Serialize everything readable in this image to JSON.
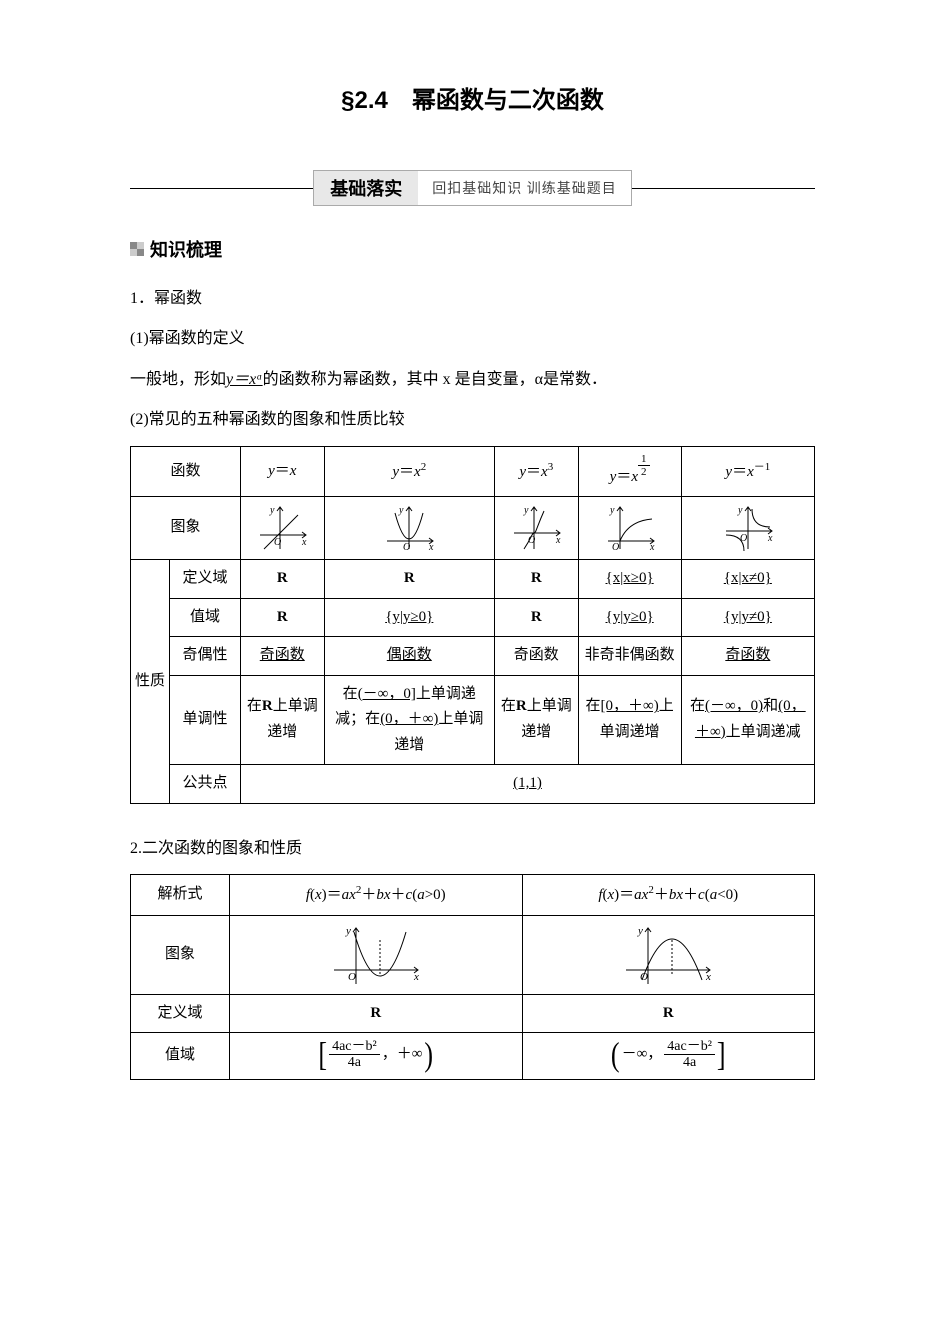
{
  "title": "§2.4　幂函数与二次函数",
  "banner": {
    "label": "基础落实",
    "sub": "回扣基础知识 训练基础题目"
  },
  "section1_head": "知识梳理",
  "p1": "1．幂函数",
  "p2": "(1)幂函数的定义",
  "p3_pre": "一般地，形如",
  "p3_u": "y＝xᵅ",
  "p3_post": "的函数称为幂函数，其中 x 是自变量，α是常数．",
  "p4": "(2)常见的五种幂函数的图象和性质比较",
  "t1": {
    "hdr_fn": "函数",
    "fns": [
      "y＝x",
      "y＝x²",
      "y＝x³",
      "y＝x^{1/2}",
      "y＝x⁻¹"
    ],
    "hdr_graph": "图象",
    "prop_label": "性质",
    "rows": {
      "domain_h": "定义域",
      "domain": [
        "R",
        "R",
        "R",
        "{x|x≥0}",
        "{x|x≠0}"
      ],
      "domain_u": [
        false,
        false,
        false,
        true,
        true
      ],
      "range_h": "值域",
      "range": [
        "R",
        "{y|y≥0}",
        "R",
        "{y|y≥0}",
        "{y|y≠0}"
      ],
      "range_u": [
        false,
        true,
        false,
        true,
        true
      ],
      "parity_h": "奇偶性",
      "parity": [
        "奇函数",
        "偶函数",
        "奇函数",
        "非奇非偶函数",
        "奇函数"
      ],
      "parity_u": [
        true,
        true,
        false,
        false,
        true
      ],
      "mono_h": "单调性",
      "mono": [
        "在R上单调递增",
        "在(－∞，0]上单调递减；在(0，＋∞)上单调递增",
        "在R上单调递增",
        "在[0，＋∞)上单调递增",
        "在(－∞，0)和(0，＋∞)上单调递减"
      ],
      "mono_u_segments": {
        "0": [
          {
            "t": "在",
            "u": false
          },
          {
            "t": "R",
            "u": false,
            "b": true
          },
          {
            "t": "上单调递增",
            "u": false
          }
        ],
        "1": [
          {
            "t": "在",
            "u": false
          },
          {
            "t": "(－∞，0]",
            "u": true
          },
          {
            "t": "上单调递减；在",
            "u": false
          },
          {
            "t": "(0，＋∞)",
            "u": true
          },
          {
            "t": "上单调递增",
            "u": false
          }
        ],
        "2": [
          {
            "t": "在",
            "u": false
          },
          {
            "t": "R",
            "u": false,
            "b": true
          },
          {
            "t": "上单调递增",
            "u": false
          }
        ],
        "3": [
          {
            "t": "在",
            "u": false
          },
          {
            "t": "[0，＋∞)",
            "u": true
          },
          {
            "t": "上单调递增",
            "u": false
          }
        ],
        "4": [
          {
            "t": "在",
            "u": false
          },
          {
            "t": "(－∞，0)",
            "u": true
          },
          {
            "t": "和",
            "u": false
          },
          {
            "t": "(0，＋∞)",
            "u": true
          },
          {
            "t": "上单调递减",
            "u": false
          }
        ]
      },
      "common_h": "公共点",
      "common_v": "(1,1)"
    },
    "graph_color": "#000",
    "axis_labels": {
      "x": "x",
      "y": "y",
      "o": "O"
    }
  },
  "p5": "2.二次函数的图象和性质",
  "t2": {
    "r1_h": "解析式",
    "r1": [
      "f(x)＝ax²＋bx＋c(a>0)",
      "f(x)＝ax²＋bx＋c(a<0)"
    ],
    "r2_h": "图象",
    "r3_h": "定义域",
    "r3": [
      "R",
      "R"
    ],
    "r4_h": "值域",
    "r4_frac_num": "4ac－b²",
    "r4_frac_den": "4a",
    "graph_color": "#000",
    "axis_labels": {
      "x": "x",
      "y": "y",
      "o": "O"
    }
  }
}
